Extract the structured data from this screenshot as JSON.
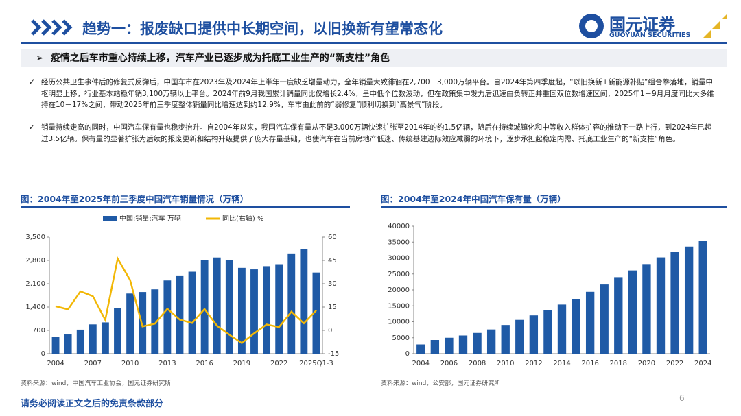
{
  "header": {
    "title": "趋势一：报废缺口提供中长期空间，以旧换新有望常态化",
    "logo": "国元证券",
    "logo_en": "GUOYUAN SECURITIES"
  },
  "subtitle": "疫情之后车市重心持续上移，汽车产业已逐步成为托底工业生产的“新支柱”角色",
  "paragraphs": [
    "经历公共卫生事件后的修复式反弹后，中国车市在2023年及2024年上半年一度缺乏增量动力，全年销量大致徘徊在2,700－3,000万辆平台。自2024年第四季度起，“以旧换新+新能源补贴”组合拳落地，销量中枢明显上移，行业基本站稳年销3,100万辆以上平台。2024年前9月我国累计销量同比仅增长2.4%，呈中低个位数波动，但在政策集中发力后迅速由负转正并重回双位数增速区间，2025年1－9月月度同比大多维持在10－17%之间，带动2025年前三季度整体销量同比增速达到约12.9%，车市由此前的“弱修复”顺利切换到“高景气”阶段。",
    "销量持续走高的同时，中国汽车保有量也稳步抬升。自2004年以来，我国汽车保有量从不足3,000万辆快速扩张至2014年的约1.5亿辆，随后在持续城镇化和中等收入群体扩容的推动下一路上行，到2024年已超过3.5亿辆。保有量的显著扩张为后续的报废更新和结构升级提供了庞大存量基础，也使汽车在当前房地产低迷、传统基建边际效应减弱的环境下，逐步承担起稳定内需、托底工业生产的“新支柱”角色。"
  ],
  "chart_data": [
    {
      "type": "bar",
      "title": "图：2004年至2025年前三季度中国汽车销量情况（万辆）",
      "source": "资料来源：wind，中国汽车工业协会，国元证券研究所",
      "categories": [
        "2004",
        null,
        null,
        "2007",
        null,
        null,
        "2010",
        null,
        null,
        "2013",
        null,
        null,
        "2016",
        null,
        null,
        "2019",
        null,
        null,
        "2022",
        null,
        null,
        "2025Q1-3"
      ],
      "series": [
        {
          "name": "中国:销量:汽车 万辆",
          "type": "bar",
          "color": "#1f5aa6",
          "values": [
            507,
            576,
            722,
            879,
            938,
            1364,
            1806,
            1851,
            1931,
            2198,
            2349,
            2460,
            2803,
            2888,
            2808,
            2577,
            2531,
            2627,
            2686,
            3009,
            3144,
            2436
          ]
        },
        {
          "name": "同比(右轴) %",
          "type": "line",
          "axis": "y2",
          "color": "#f2b705",
          "values": [
            15.5,
            13.5,
            25.1,
            22.0,
            6.7,
            46.2,
            32.4,
            2.5,
            4.3,
            13.9,
            6.9,
            4.7,
            13.7,
            3.0,
            -2.8,
            -8.2,
            -1.9,
            3.8,
            2.1,
            12.0,
            4.5,
            12.9
          ]
        }
      ],
      "ylim": [
        0,
        3500
      ],
      "yticks": [
        0,
        700,
        {
          "value": 1400,
          "label": "1,400"
        },
        {
          "value": 2100,
          "label": "2,100"
        },
        {
          "value": 2800,
          "label": "2,800"
        },
        {
          "value": 3500,
          "label": "3,500"
        }
      ],
      "y2lim": [
        -15,
        60
      ],
      "y2ticks": [
        -15,
        0,
        15,
        30,
        45,
        60
      ],
      "legend": "top"
    },
    {
      "type": "bar",
      "title": "图：2004年至2024年中国汽车保有量（万辆）",
      "source": "资料来源：wind，公安部，国元证券研究所",
      "categories": [
        "2004",
        null,
        "2006",
        null,
        "2008",
        null,
        "2010",
        null,
        "2012",
        null,
        "2014",
        null,
        "2016",
        null,
        "2018",
        null,
        "2020",
        null,
        "2022",
        null,
        "2024"
      ],
      "values": [
        2900,
        4300,
        5000,
        5700,
        6500,
        7600,
        9000,
        10600,
        12000,
        13700,
        15400,
        17200,
        19400,
        21700,
        24000,
        26100,
        28100,
        30200,
        31900,
        33600,
        35300
      ],
      "color": "#1f5aa6",
      "ylim": [
        0,
        40000
      ],
      "yticks": [
        0,
        5000,
        10000,
        15000,
        20000,
        25000,
        30000,
        35000,
        40000
      ]
    }
  ],
  "footer": {
    "disclaimer": "请务必阅读正文之后的免责条款部分",
    "page": "6"
  }
}
